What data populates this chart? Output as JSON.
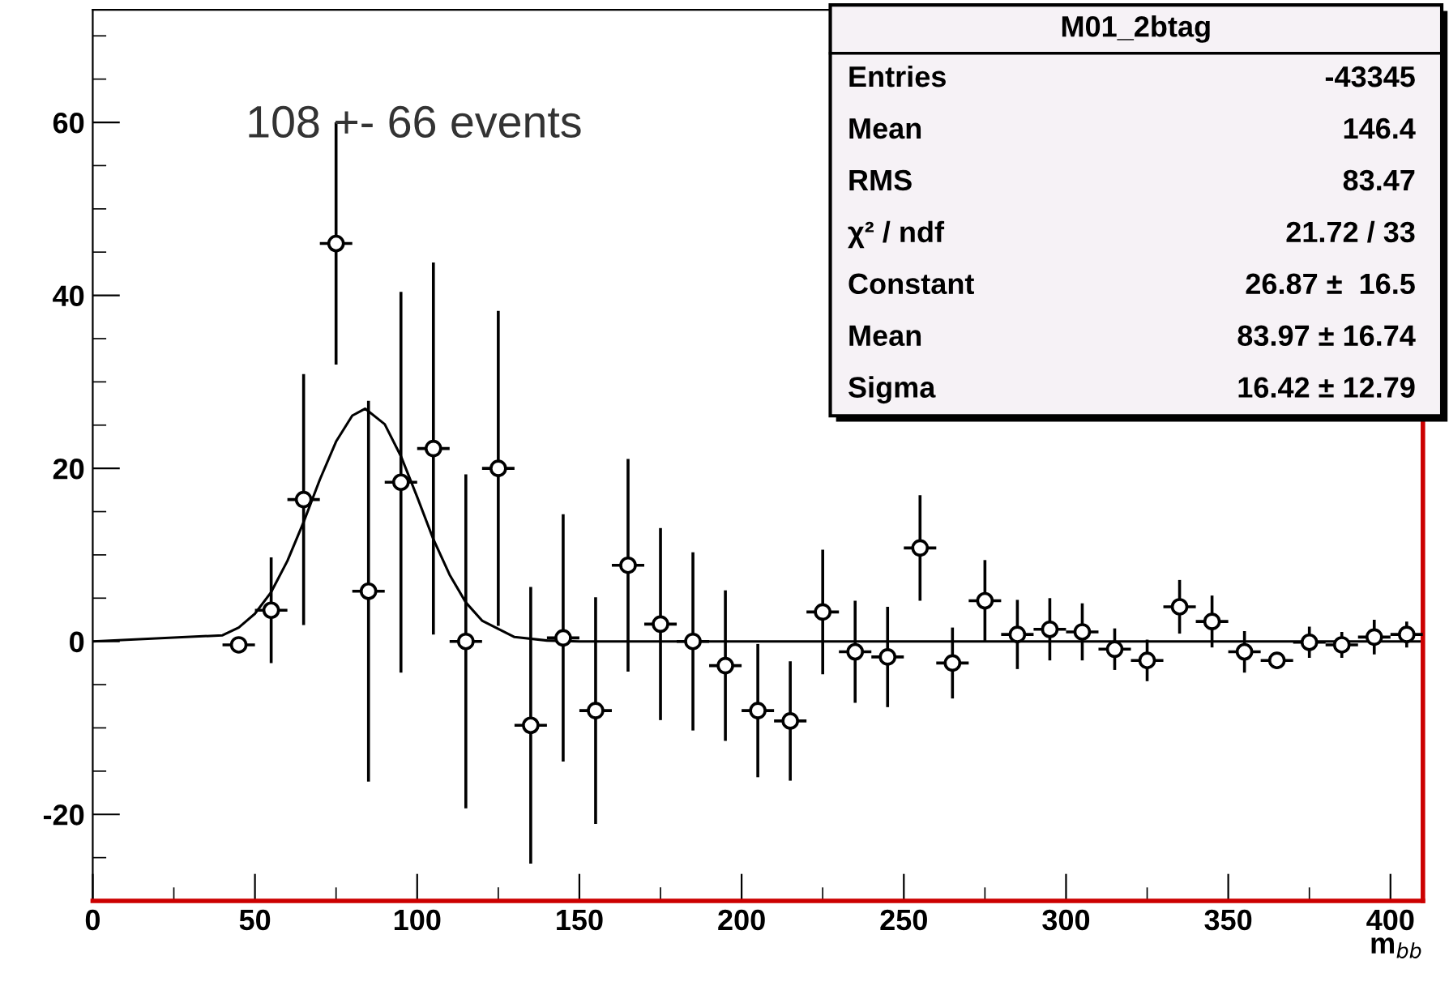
{
  "chart_data": {
    "type": "scatter",
    "title": "M01_2btag",
    "xlabel": "m$_{bb}$",
    "xlim": [
      0,
      410
    ],
    "ylim": [
      -30,
      73
    ],
    "xticks": [
      0,
      50,
      100,
      150,
      200,
      250,
      300,
      350,
      400
    ],
    "yticks": [
      -20,
      0,
      20,
      40,
      60
    ],
    "grid": false,
    "annotations": [
      "108 +- 66 events",
      "Entries",
      "-43345",
      "Mean",
      "146.4",
      "RMS",
      "83.47",
      "χ² / ndf",
      "21.72 / 33",
      "Constant",
      "26.87 ±  16.5",
      "Mean",
      "83.97 ± 16.74",
      "Sigma",
      "16.42 ± 12.79"
    ],
    "series": [
      {
        "color": "#000000",
        "marker": "circle",
        "x": [
          45,
          55,
          65,
          75,
          85,
          95,
          105,
          115,
          125,
          135,
          145,
          155,
          165,
          175,
          185,
          195,
          205,
          215,
          225,
          235,
          245,
          255,
          265,
          275,
          285,
          295,
          305,
          315,
          325,
          335,
          345,
          355,
          365,
          375,
          385,
          395,
          405
        ],
        "values": [
          -0.4,
          3.6,
          16.4,
          46,
          5.8,
          18.4,
          22.3,
          0,
          20,
          -9.7,
          0.4,
          -8,
          8.8,
          2,
          0,
          -2.8,
          -8,
          -9.2,
          3.4,
          -1.2,
          -1.8,
          10.8,
          -2.5,
          4.7,
          0.8,
          1.4,
          1.1,
          -0.9,
          -2.2,
          4,
          2.3,
          -1.2,
          -2.2,
          -0.1,
          -0.4,
          0.5,
          0.8
        ],
        "errors": [
          null,
          6.1,
          14.5,
          14,
          22,
          22,
          21.5,
          19.3,
          18.2,
          16,
          14.3,
          13.1,
          12.3,
          11.1,
          10.3,
          8.7,
          7.7,
          6.9,
          7.2,
          5.9,
          5.8,
          6.1,
          4.1,
          4.7,
          4,
          3.6,
          3.3,
          2.4,
          2.4,
          3.1,
          3,
          2.4,
          null,
          1.8,
          1.5,
          2,
          1.5
        ],
        "xerrors": [
          5,
          5,
          5,
          5,
          5,
          5,
          5,
          5,
          5,
          5,
          5,
          5,
          5,
          5,
          5,
          5,
          5,
          5,
          5,
          5,
          5,
          5,
          5,
          5,
          5,
          5,
          5,
          5,
          5,
          5,
          5,
          5,
          5,
          5,
          5,
          5,
          5
        ]
      },
      {
        "type": "line",
        "color": "#000000",
        "marker": "none",
        "line_style": "solid",
        "x": [
          0,
          40,
          45,
          50,
          55,
          60,
          65,
          70,
          75,
          80,
          84,
          90,
          95,
          100,
          105,
          110,
          115,
          120,
          130,
          140,
          150,
          410
        ],
        "values": [
          0,
          0.7,
          1.6,
          3.2,
          5.7,
          9.3,
          13.8,
          18.7,
          23.1,
          26.1,
          26.9,
          25.1,
          21.4,
          16.7,
          11.8,
          7.7,
          4.5,
          2.4,
          0.5,
          0.1,
          0,
          0
        ]
      }
    ]
  }
}
